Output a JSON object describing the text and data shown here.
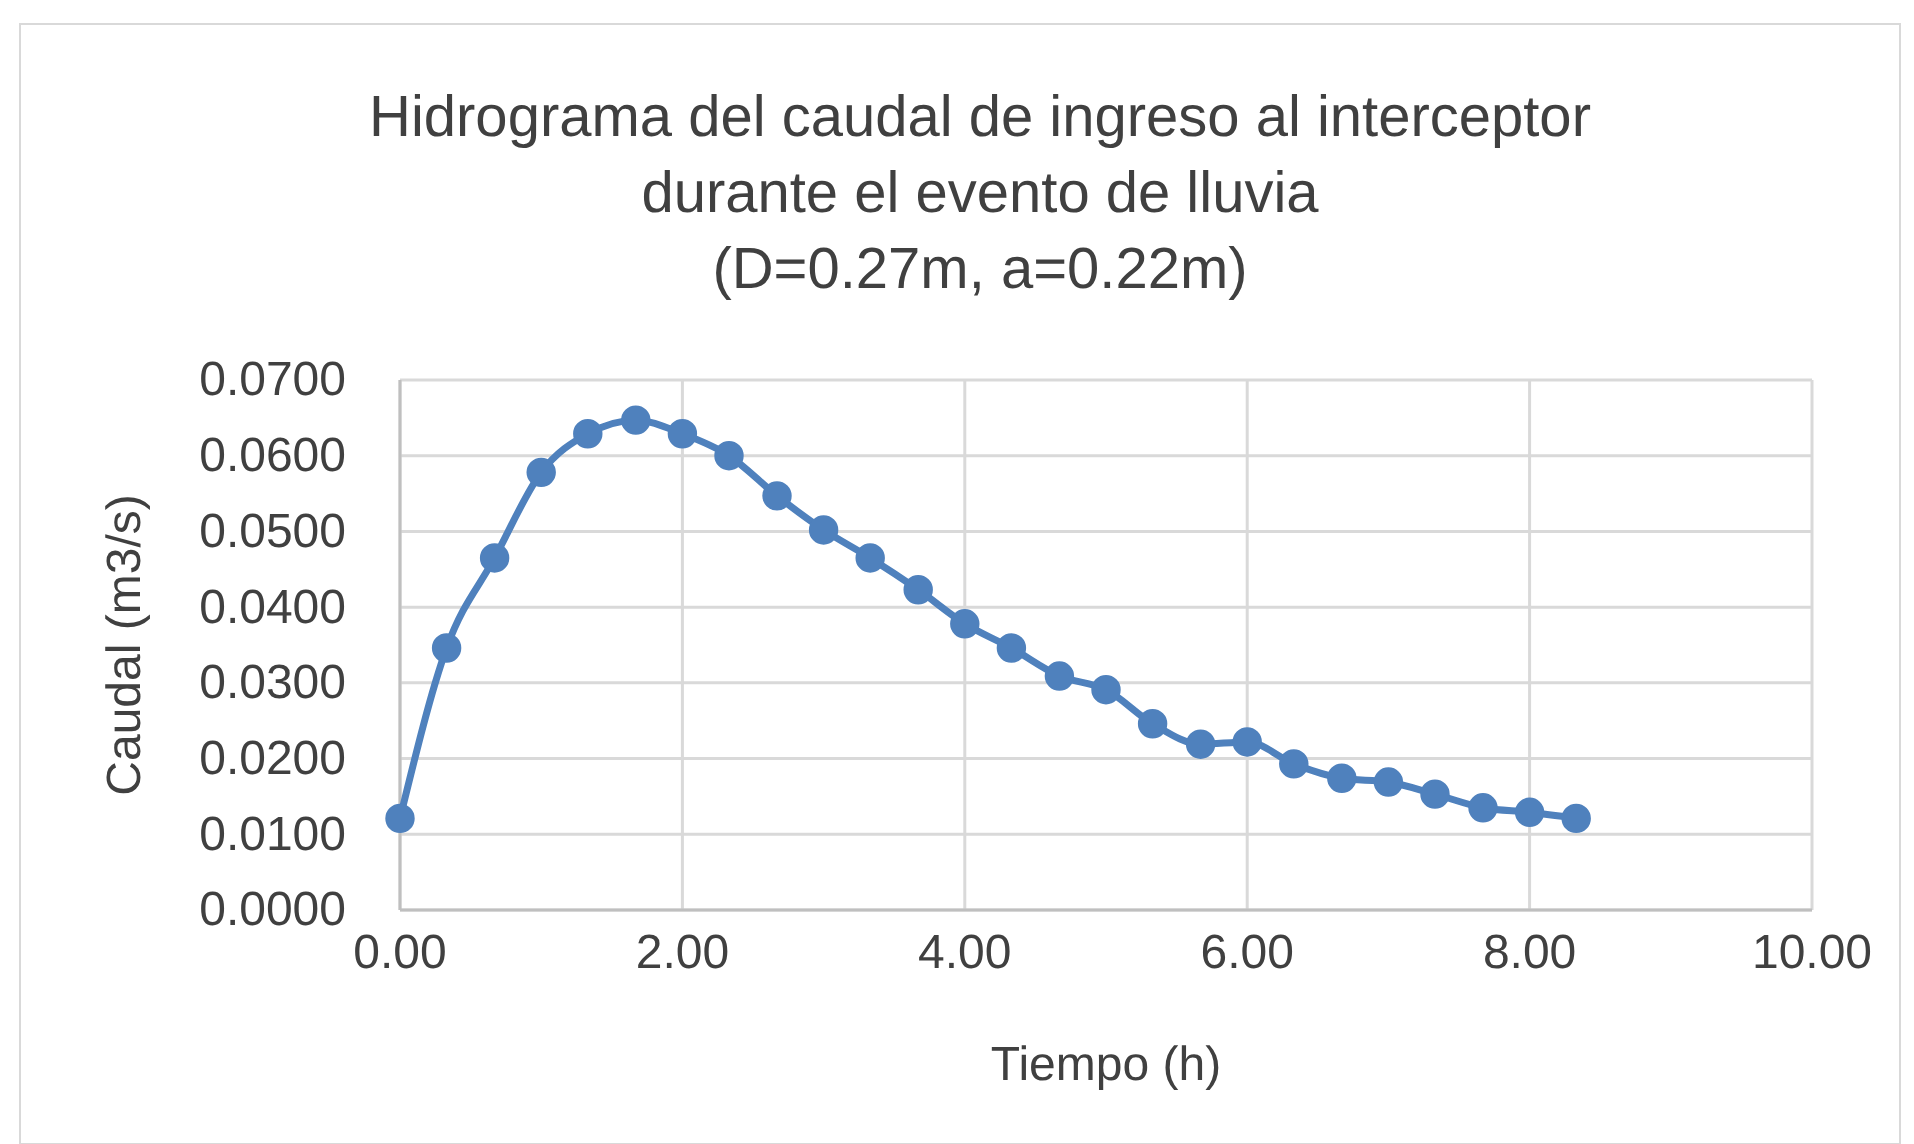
{
  "chart_data": {
    "type": "line",
    "title": "Hidrograma del caudal de ingreso al interceptor\ndurante el evento de lluvia\n(D=0.27m, a=0.22m)",
    "xlabel": "Tiempo (h)",
    "ylabel": "Caudal (m3/s)",
    "x": [
      0,
      0.33,
      0.67,
      1.0,
      1.33,
      1.67,
      2.0,
      2.33,
      2.67,
      3.0,
      3.33,
      3.67,
      4.0,
      4.33,
      4.67,
      5.0,
      5.33,
      5.67,
      6.0,
      6.33,
      6.67,
      7.0,
      7.33,
      7.67,
      8.0,
      8.33
    ],
    "series": [
      {
        "color": "#4f81bd",
        "values": [
          0.0121,
          0.0346,
          0.0465,
          0.0578,
          0.0629,
          0.0647,
          0.0629,
          0.06,
          0.0547,
          0.0502,
          0.0465,
          0.0423,
          0.0378,
          0.0346,
          0.0309,
          0.0291,
          0.0246,
          0.0219,
          0.0222,
          0.0193,
          0.0174,
          0.0169,
          0.0153,
          0.0135,
          0.0129,
          0.0121
        ]
      }
    ],
    "xlim": [
      0,
      10
    ],
    "xticks": [
      {
        "value": 0,
        "label": "0.00"
      },
      {
        "value": 2,
        "label": "2.00"
      },
      {
        "value": 4,
        "label": "4.00"
      },
      {
        "value": 6,
        "label": "6.00"
      },
      {
        "value": 8,
        "label": "8.00"
      },
      {
        "value": 10,
        "label": "10.00"
      }
    ],
    "ylim": [
      0,
      0.07
    ],
    "yticks": [
      {
        "value": 0,
        "label": "0.0000"
      },
      {
        "value": 0.01,
        "label": "0.0100"
      },
      {
        "value": 0.02,
        "label": "0.0200"
      },
      {
        "value": 0.03,
        "label": "0.0300"
      },
      {
        "value": 0.04,
        "label": "0.0400"
      },
      {
        "value": 0.05,
        "label": "0.0500"
      },
      {
        "value": 0.06,
        "label": "0.0600"
      },
      {
        "value": 0.07,
        "label": "0.0700"
      }
    ],
    "grid": true,
    "marker": "circle",
    "line_style": "solid"
  }
}
